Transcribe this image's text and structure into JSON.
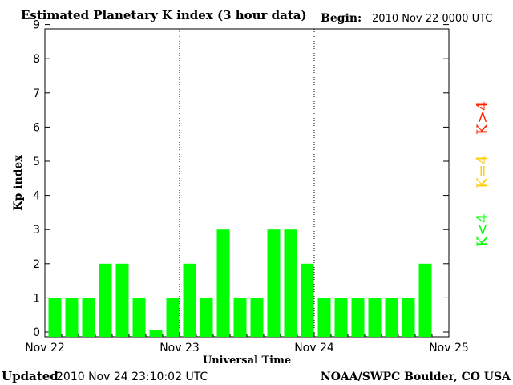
{
  "chart_data": {
    "type": "bar",
    "title": "Estimated Planetary K index (3 hour data)",
    "begin_label": "Begin:",
    "begin_value": "2010 Nov 22 0000 UTC",
    "xlabel": "Universal Time",
    "ylabel": "Kp index",
    "ylim": [
      0,
      9
    ],
    "yticks": [
      "0",
      "1",
      "2",
      "3",
      "4",
      "5",
      "6",
      "7",
      "8",
      "9"
    ],
    "xticks": [
      "Nov 22",
      "Nov 23",
      "Nov 24",
      "Nov 25"
    ],
    "bars_per_day": 8,
    "values": [
      1,
      1,
      1,
      2,
      2,
      1,
      0.05,
      1,
      2,
      1,
      3,
      1,
      1,
      3,
      3,
      2,
      1,
      1,
      1,
      1,
      1,
      1,
      2
    ],
    "bar_color": "#00ff00",
    "grid": false,
    "day_separators": "dotted vertical",
    "legend": [
      {
        "label": "K<4",
        "color": "#00ff00"
      },
      {
        "label": "K=4",
        "color": "#ffcc00"
      },
      {
        "label": "K>4",
        "color": "#ff2200"
      }
    ]
  },
  "footer": {
    "updated_label": "Updated",
    "updated_value": "2010 Nov 24 23:10:02 UTC",
    "source": "NOAA/SWPC Boulder, CO USA"
  }
}
